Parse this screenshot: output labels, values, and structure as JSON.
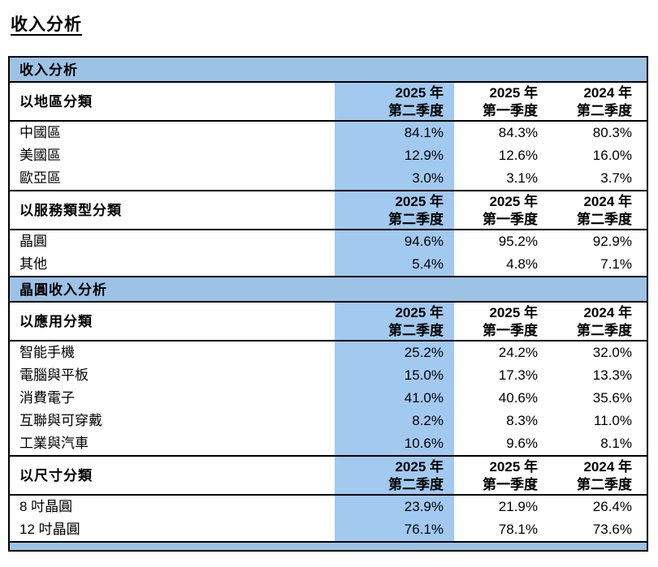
{
  "page": {
    "title": "收入分析"
  },
  "colors": {
    "banner_bg": "#9CC2E5",
    "highlight_column_bg": "#A2C9EF",
    "border": "#000000",
    "text": "#000000"
  },
  "table": {
    "banner1": "收入分析",
    "banner2": "晶圓收入分析",
    "quarters": {
      "c1": {
        "l1": "2025 年",
        "l2": "第二季度"
      },
      "c2": {
        "l1": "2025 年",
        "l2": "第一季度"
      },
      "c3": {
        "l1": "2024 年",
        "l2": "第二季度"
      }
    },
    "groups": [
      {
        "header": "以地區分類",
        "rows": [
          {
            "label": "中國區",
            "v1": "84.1%",
            "v2": "84.3%",
            "v3": "80.3%"
          },
          {
            "label": "美國區",
            "v1": "12.9%",
            "v2": "12.6%",
            "v3": "16.0%"
          },
          {
            "label": "歐亞區",
            "v1": "3.0%",
            "v2": "3.1%",
            "v3": "3.7%"
          }
        ]
      },
      {
        "header": "以服務類型分類",
        "rows": [
          {
            "label": "晶圓",
            "v1": "94.6%",
            "v2": "95.2%",
            "v3": "92.9%"
          },
          {
            "label": "其他",
            "v1": "5.4%",
            "v2": "4.8%",
            "v3": "7.1%"
          }
        ]
      },
      {
        "header": "以應用分類",
        "rows": [
          {
            "label": "智能手機",
            "v1": "25.2%",
            "v2": "24.2%",
            "v3": "32.0%"
          },
          {
            "label": "電腦與平板",
            "v1": "15.0%",
            "v2": "17.3%",
            "v3": "13.3%"
          },
          {
            "label": "消費電子",
            "v1": "41.0%",
            "v2": "40.6%",
            "v3": "35.6%"
          },
          {
            "label": "互聯與可穿戴",
            "v1": "8.2%",
            "v2": "8.3%",
            "v3": "11.0%"
          },
          {
            "label": "工業與汽車",
            "v1": "10.6%",
            "v2": "9.6%",
            "v3": "8.1%"
          }
        ]
      },
      {
        "header": "以尺寸分類",
        "rows": [
          {
            "label": "8 吋晶圓",
            "v1": "23.9%",
            "v2": "21.9%",
            "v3": "26.4%"
          },
          {
            "label": "12 吋晶圓",
            "v1": "76.1%",
            "v2": "78.1%",
            "v3": "73.6%"
          }
        ]
      }
    ]
  }
}
